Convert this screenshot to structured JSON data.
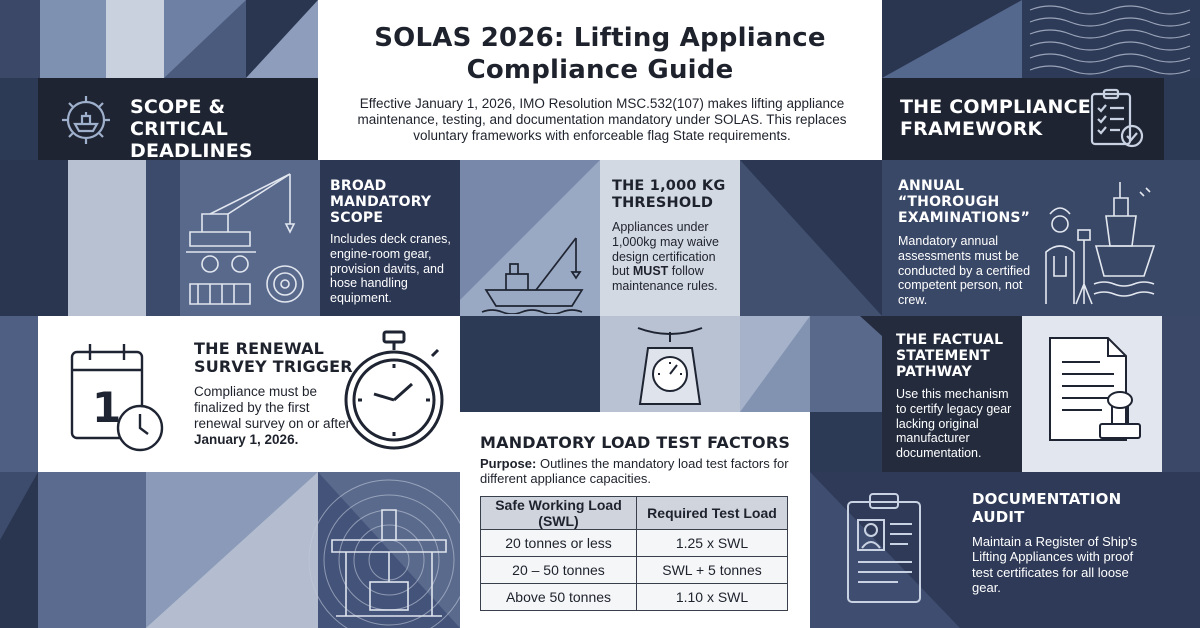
{
  "header": {
    "title_line1": "SOLAS 2026: Lifting Appliance",
    "title_line2": "Compliance Guide",
    "intro": "Effective January 1, 2026, IMO Resolution MSC.532(107) makes lifting appliance maintenance, testing, and documentation mandatory under SOLAS. This replaces voluntary frameworks with enforceable flag State requirements."
  },
  "scope_banner": {
    "line1": "SCOPE & CRITICAL",
    "line2": "DEADLINES",
    "icon": "ship-gear-icon"
  },
  "framework_banner": {
    "line1": "THE COMPLIANCE",
    "line2": "FRAMEWORK",
    "icon": "checklist-clipboard-icon"
  },
  "broad_scope": {
    "title_lines": [
      "BROAD",
      "MANDATORY",
      "SCOPE"
    ],
    "text": "Includes deck cranes, engine-room gear, provision davits, and hose handling equipment.",
    "icon": "deck-crane-icon"
  },
  "threshold": {
    "title_lines": [
      "THE 1,000 KG",
      "THRESHOLD"
    ],
    "text_before": "Appliances under 1,000kg may waive design certification but",
    "text_emph": "MUST",
    "text_after": "follow maintenance rules.",
    "icons": [
      "tug-crane-icon",
      "weighing-scale-icon"
    ]
  },
  "annual": {
    "title_lines": [
      "ANNUAL “THOROUGH",
      "EXAMINATIONS”"
    ],
    "text": "Mandatory annual assessments must be conducted by a certified competent person, not crew.",
    "icon": "inspector-ship-icon"
  },
  "renewal": {
    "title_lines": [
      "THE RENEWAL",
      "SURVEY TRIGGER"
    ],
    "text_before": "Compliance must be finalized by the first renewal survey on or after",
    "text_emph": "January 1, 2026.",
    "calendar_number": "1",
    "icons": [
      "calendar-clock-icon",
      "stopwatch-icon"
    ]
  },
  "factual": {
    "title_lines": [
      "THE FACTUAL",
      "STATEMENT",
      "PATHWAY"
    ],
    "text": "Use this mechanism to certify legacy gear lacking original manufacturer documentation.",
    "icon": "document-stamp-icon"
  },
  "load_test": {
    "title": "MANDATORY LOAD TEST FACTORS",
    "purpose_label": "Purpose:",
    "purpose_text": "Outlines the mandatory load test factors for different appliance capacities.",
    "columns": [
      "Safe Working Load (SWL)",
      "Required Test Load"
    ],
    "rows": [
      [
        "20 tonnes or less",
        "1.25 x SWL"
      ],
      [
        "20 – 50 tonnes",
        "SWL + 5 tonnes"
      ],
      [
        "Above 50 tonnes",
        "1.10 x SWL"
      ]
    ]
  },
  "documentation": {
    "title_lines": [
      "DOCUMENTATION",
      "AUDIT"
    ],
    "text": "Maintain a Register of Ship's Lifting Appliances with proof test certificates for all loose gear.",
    "icon": "id-clipboard-icon"
  },
  "colors": {
    "navy_dark": "#1e2432",
    "navy_mid": "#3c4a6b",
    "slate": "#56698f",
    "steel_light": "#c7cfdc",
    "panel_white": "#ffffff"
  }
}
